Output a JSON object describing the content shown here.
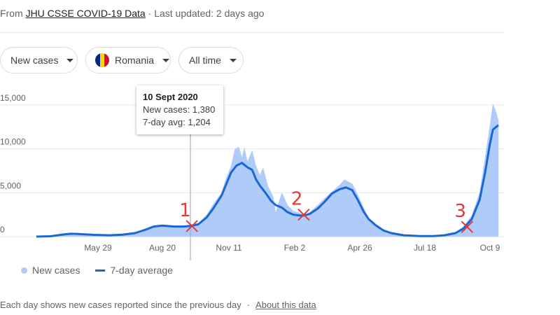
{
  "header": {
    "from_prefix": "From ",
    "source_link": "JHU CSSE COVID-19 Data",
    "separator": " · ",
    "last_updated": "Last updated: 2 days ago"
  },
  "filters": {
    "metric": "New cases",
    "location": "Romania",
    "range": "All time",
    "flag_colors": [
      "#002b7f",
      "#fcd116",
      "#ce1126"
    ]
  },
  "tooltip": {
    "date": "10 Sept 2020",
    "new_cases": "New cases: 1,380",
    "avg": "7-day avg: 1,204"
  },
  "legend": {
    "new_cases": "New cases",
    "avg": "7-day average"
  },
  "footer": {
    "note": "Each day shows new cases reported since the previous day",
    "separator": "·",
    "link": "About this data"
  },
  "chart_data": {
    "type": "area",
    "ylim": [
      0,
      15000
    ],
    "y_ticks": [
      {
        "value": 0,
        "label": "0"
      },
      {
        "value": 5000,
        "label": "5,000"
      },
      {
        "value": 10000,
        "label": "10,000"
      },
      {
        "value": 15000,
        "label": "15,000"
      }
    ],
    "x_ticks": [
      "May 29",
      "Aug 20",
      "Nov 11",
      "Feb 2",
      "Apr 26",
      "Jul 18",
      "Oct 9"
    ],
    "hover_date": "10 Sept 2020",
    "series": [
      {
        "name": "New cases",
        "points": [
          [
            "2020-02-26",
            0
          ],
          [
            "2020-03-15",
            60
          ],
          [
            "2020-04-01",
            300
          ],
          [
            "2020-04-10",
            350
          ],
          [
            "2020-04-20",
            300
          ],
          [
            "2020-05-10",
            200
          ],
          [
            "2020-05-29",
            140
          ],
          [
            "2020-06-15",
            250
          ],
          [
            "2020-07-01",
            450
          ],
          [
            "2020-07-15",
            900
          ],
          [
            "2020-07-25",
            1250
          ],
          [
            "2020-08-05",
            1300
          ],
          [
            "2020-08-20",
            1150
          ],
          [
            "2020-09-01",
            1200
          ],
          [
            "2020-09-10",
            1380
          ],
          [
            "2020-09-20",
            1500
          ],
          [
            "2020-10-01",
            2500
          ],
          [
            "2020-10-10",
            3800
          ],
          [
            "2020-10-20",
            5000
          ],
          [
            "2020-10-25",
            6500
          ],
          [
            "2020-11-01",
            8000
          ],
          [
            "2020-11-06",
            10000
          ],
          [
            "2020-11-11",
            10200
          ],
          [
            "2020-11-15",
            9000
          ],
          [
            "2020-11-18",
            10100
          ],
          [
            "2020-11-22",
            8500
          ],
          [
            "2020-11-28",
            9800
          ],
          [
            "2020-12-03",
            8000
          ],
          [
            "2020-12-08",
            7000
          ],
          [
            "2020-12-12",
            7800
          ],
          [
            "2020-12-18",
            5800
          ],
          [
            "2020-12-25",
            4500
          ],
          [
            "2020-12-28",
            2700
          ],
          [
            "2021-01-05",
            5000
          ],
          [
            "2021-01-12",
            3600
          ],
          [
            "2021-01-20",
            2900
          ],
          [
            "2021-01-28",
            2700
          ],
          [
            "2021-02-02",
            2400
          ],
          [
            "2021-02-10",
            2800
          ],
          [
            "2021-02-20",
            3600
          ],
          [
            "2021-03-01",
            4400
          ],
          [
            "2021-03-10",
            5100
          ],
          [
            "2021-03-20",
            5900
          ],
          [
            "2021-03-26",
            6500
          ],
          [
            "2021-04-05",
            6000
          ],
          [
            "2021-04-12",
            4800
          ],
          [
            "2021-04-20",
            3200
          ],
          [
            "2021-04-26",
            2100
          ],
          [
            "2021-05-05",
            1300
          ],
          [
            "2021-05-15",
            600
          ],
          [
            "2021-05-25",
            300
          ],
          [
            "2021-06-10",
            100
          ],
          [
            "2021-07-01",
            50
          ],
          [
            "2021-07-18",
            70
          ],
          [
            "2021-08-01",
            200
          ],
          [
            "2021-08-15",
            500
          ],
          [
            "2021-08-25",
            1100
          ],
          [
            "2021-09-05",
            2400
          ],
          [
            "2021-09-15",
            5000
          ],
          [
            "2021-09-22",
            9000
          ],
          [
            "2021-09-28",
            12500
          ],
          [
            "2021-10-02",
            15100
          ],
          [
            "2021-10-06",
            14200
          ],
          [
            "2021-10-09",
            13200
          ]
        ]
      },
      {
        "name": "7-day average",
        "points": [
          [
            "2020-02-26",
            0
          ],
          [
            "2020-03-15",
            40
          ],
          [
            "2020-04-01",
            250
          ],
          [
            "2020-04-10",
            330
          ],
          [
            "2020-04-20",
            300
          ],
          [
            "2020-05-10",
            200
          ],
          [
            "2020-05-29",
            150
          ],
          [
            "2020-06-15",
            220
          ],
          [
            "2020-07-01",
            400
          ],
          [
            "2020-07-15",
            800
          ],
          [
            "2020-07-25",
            1150
          ],
          [
            "2020-08-05",
            1250
          ],
          [
            "2020-08-20",
            1150
          ],
          [
            "2020-09-01",
            1150
          ],
          [
            "2020-09-10",
            1204
          ],
          [
            "2020-09-20",
            1400
          ],
          [
            "2020-10-01",
            2200
          ],
          [
            "2020-10-10",
            3300
          ],
          [
            "2020-10-20",
            4700
          ],
          [
            "2020-10-25",
            5800
          ],
          [
            "2020-11-01",
            7300
          ],
          [
            "2020-11-08",
            8100
          ],
          [
            "2020-11-15",
            8400
          ],
          [
            "2020-11-22",
            7900
          ],
          [
            "2020-11-28",
            7600
          ],
          [
            "2020-12-03",
            6500
          ],
          [
            "2020-12-08",
            5800
          ],
          [
            "2020-12-15",
            5000
          ],
          [
            "2020-12-22",
            4100
          ],
          [
            "2020-12-28",
            3600
          ],
          [
            "2021-01-05",
            3300
          ],
          [
            "2021-01-12",
            2800
          ],
          [
            "2021-01-20",
            2500
          ],
          [
            "2021-01-28",
            2400
          ],
          [
            "2021-02-02",
            2400
          ],
          [
            "2021-02-10",
            2600
          ],
          [
            "2021-02-20",
            3200
          ],
          [
            "2021-03-01",
            4000
          ],
          [
            "2021-03-10",
            4900
          ],
          [
            "2021-03-20",
            5400
          ],
          [
            "2021-03-28",
            5600
          ],
          [
            "2021-04-05",
            5300
          ],
          [
            "2021-04-12",
            4200
          ],
          [
            "2021-04-20",
            2800
          ],
          [
            "2021-04-26",
            2000
          ],
          [
            "2021-05-05",
            1300
          ],
          [
            "2021-05-15",
            700
          ],
          [
            "2021-05-25",
            400
          ],
          [
            "2021-06-10",
            150
          ],
          [
            "2021-07-01",
            60
          ],
          [
            "2021-07-18",
            60
          ],
          [
            "2021-08-01",
            150
          ],
          [
            "2021-08-15",
            400
          ],
          [
            "2021-08-25",
            900
          ],
          [
            "2021-09-05",
            2000
          ],
          [
            "2021-09-15",
            4200
          ],
          [
            "2021-09-22",
            7300
          ],
          [
            "2021-09-28",
            10500
          ],
          [
            "2021-10-02",
            12200
          ],
          [
            "2021-10-09",
            12700
          ]
        ]
      }
    ],
    "annotations": [
      {
        "label": "1",
        "date": "2020-09-12",
        "value": 1200
      },
      {
        "label": "2",
        "date": "2021-02-02",
        "value": 2500
      },
      {
        "label": "3",
        "date": "2021-08-30",
        "value": 1100
      }
    ]
  }
}
